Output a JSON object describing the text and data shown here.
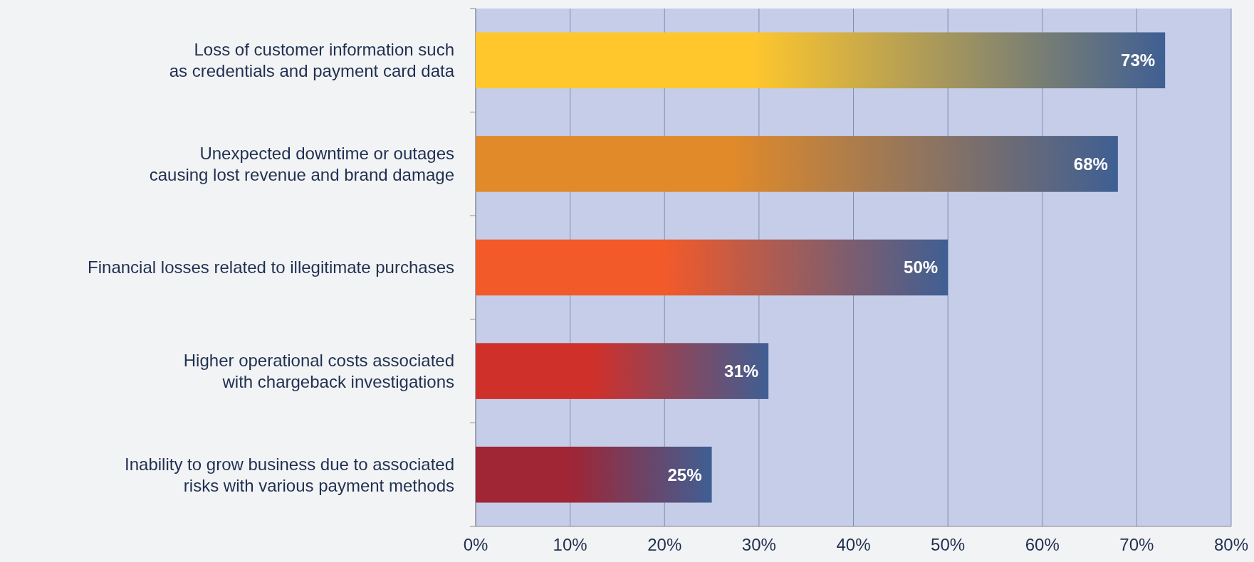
{
  "chart_data": {
    "type": "bar",
    "orientation": "horizontal",
    "categories": [
      "Loss of customer information such as credentials and payment card data",
      "Unexpected downtime or outages causing lost revenue and brand damage",
      "Financial losses related to illegitimate purchases",
      "Higher operational costs associated with chargeback investigations",
      "Inability to grow business due to associated risks with various payment methods"
    ],
    "values": [
      73,
      68,
      50,
      31,
      25
    ],
    "colors": [
      "#ffc72c",
      "#e08a2a",
      "#f25a2a",
      "#d0302a",
      "#a02535"
    ],
    "value_labels": [
      "73%",
      "68%",
      "50%",
      "31%",
      "25%"
    ],
    "xlim": [
      0,
      80
    ],
    "xticks": [
      {
        "value": 0,
        "label": "0%"
      },
      {
        "value": 10,
        "label": "10%"
      },
      {
        "value": 20,
        "label": "20%"
      },
      {
        "value": 30,
        "label": "30%"
      },
      {
        "value": 40,
        "label": "40%"
      },
      {
        "value": 50,
        "label": "50%"
      },
      {
        "value": 60,
        "label": "60%"
      },
      {
        "value": 70,
        "label": "70%"
      },
      {
        "value": 80,
        "label": "80%"
      }
    ],
    "grid": "x"
  }
}
